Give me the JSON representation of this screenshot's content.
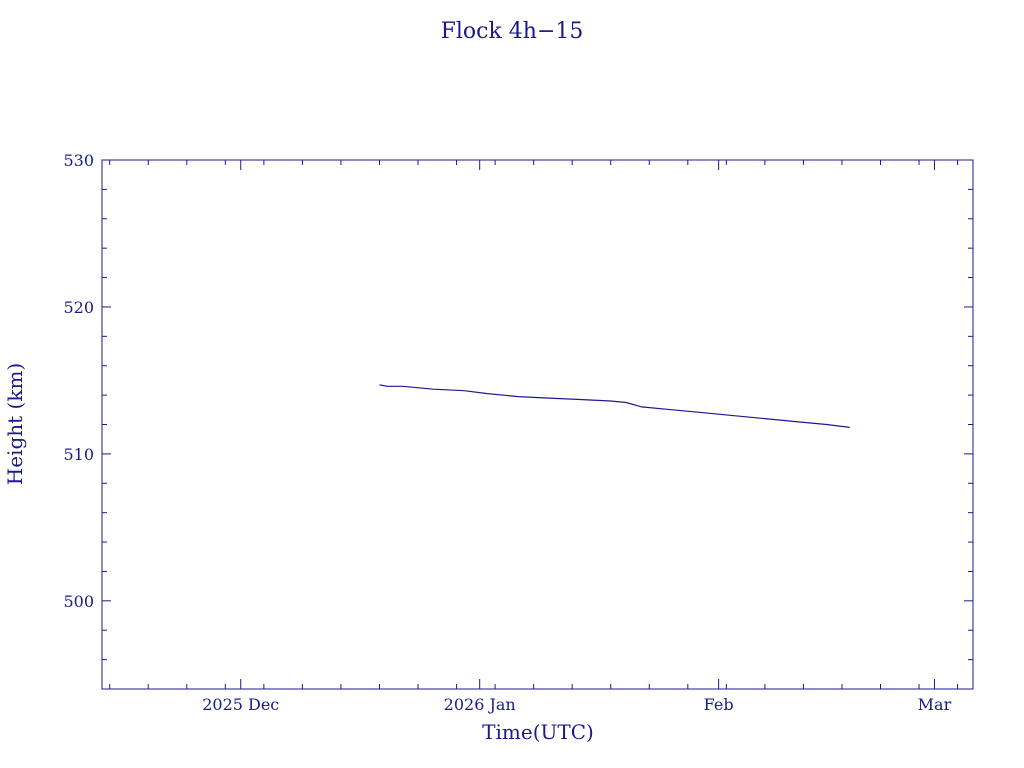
{
  "chart_data": {
    "type": "line",
    "title": "Flock 4h−15",
    "xlabel": "Time(UTC)",
    "ylabel": "Height (km)",
    "ylim": [
      494,
      530
    ],
    "y_ticks": [
      500,
      510,
      520,
      530
    ],
    "y_minor_step": 2,
    "xlim": [
      "2025-11-13",
      "2026-03-06"
    ],
    "x_ticks": [
      {
        "date": "2025-12-01",
        "label": "2025 Dec"
      },
      {
        "date": "2026-01-01",
        "label": "2026 Jan"
      },
      {
        "date": "2026-02-01",
        "label": "Feb"
      },
      {
        "date": "2026-03-01",
        "label": "Mar"
      }
    ],
    "x_minor_days": [
      "2025-11-14",
      "2025-11-19",
      "2025-11-24",
      "2025-11-29",
      "2025-12-04",
      "2025-12-09",
      "2025-12-14",
      "2025-12-19",
      "2025-12-24",
      "2025-12-29",
      "2026-01-03",
      "2026-01-08",
      "2026-01-13",
      "2026-01-18",
      "2026-01-23",
      "2026-01-28",
      "2026-02-02",
      "2026-02-07",
      "2026-02-12",
      "2026-02-17",
      "2026-02-22",
      "2026-02-27",
      "2026-03-04"
    ],
    "grid": false,
    "color": "#1a1a8c",
    "series": [
      {
        "name": "",
        "x": [
          "2025-12-19",
          "2025-12-20",
          "2025-12-22",
          "2025-12-26",
          "2025-12-30",
          "2026-01-02",
          "2026-01-06",
          "2026-01-10",
          "2026-01-14",
          "2026-01-18",
          "2026-01-20",
          "2026-01-22",
          "2026-01-26",
          "2026-01-30",
          "2026-02-03",
          "2026-02-07",
          "2026-02-11",
          "2026-02-15",
          "2026-02-18"
        ],
        "y": [
          514.7,
          514.6,
          514.6,
          514.4,
          514.3,
          514.1,
          513.9,
          513.8,
          513.7,
          513.6,
          513.5,
          513.2,
          513.0,
          512.8,
          512.6,
          512.4,
          512.2,
          512.0,
          511.8
        ]
      }
    ]
  }
}
